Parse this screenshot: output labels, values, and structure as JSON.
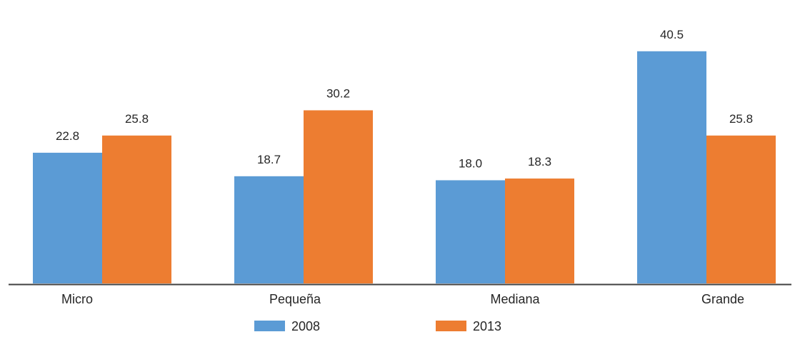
{
  "chart_data": {
    "type": "bar",
    "categories": [
      "Micro",
      "Pequeña",
      "Mediana",
      "Grande"
    ],
    "series": [
      {
        "name": "2008",
        "values": [
          22.8,
          18.7,
          18.0,
          40.5
        ],
        "labels": [
          "22.8",
          "18.7",
          "18.0",
          "40.5"
        ],
        "color": "#5b9bd5"
      },
      {
        "name": "2013",
        "values": [
          25.8,
          30.2,
          18.3,
          25.8
        ],
        "labels": [
          "25.8",
          "30.2",
          "18.3",
          "25.8"
        ],
        "color": "#ed7d31"
      }
    ],
    "title": "",
    "xlabel": "",
    "ylabel": "",
    "ylim": [
      0,
      44
    ],
    "grid": false,
    "legend_position": "bottom"
  }
}
